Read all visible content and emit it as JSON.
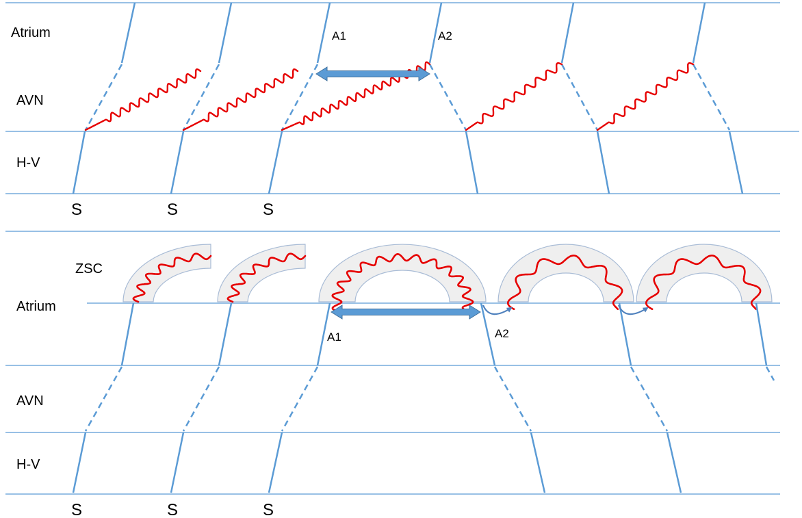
{
  "top_panel": {
    "labels": {
      "atrium": "Atrium",
      "avn": "AVN",
      "hv": "H-V",
      "a1": "A1",
      "a2": "A2",
      "stim": [
        "S",
        "S",
        "S"
      ]
    }
  },
  "bottom_panel": {
    "labels": {
      "zsc": "ZSC",
      "atrium": "Atrium",
      "avn": "AVN",
      "hv": "H-V",
      "a1": "A1",
      "a2": "A2",
      "stim": [
        "S",
        "S",
        "S"
      ]
    }
  },
  "colors": {
    "line": "#5b9bd5",
    "wave": "#e60000",
    "arrow": "#4f81bd",
    "arc_fill": "#efefef",
    "arc_stroke": "#a9bcd6",
    "text": "#000000"
  },
  "icons": {
    "double_arrow": "double-headed-arrow-icon",
    "curved_arrow": "curved-arrow-icon"
  }
}
